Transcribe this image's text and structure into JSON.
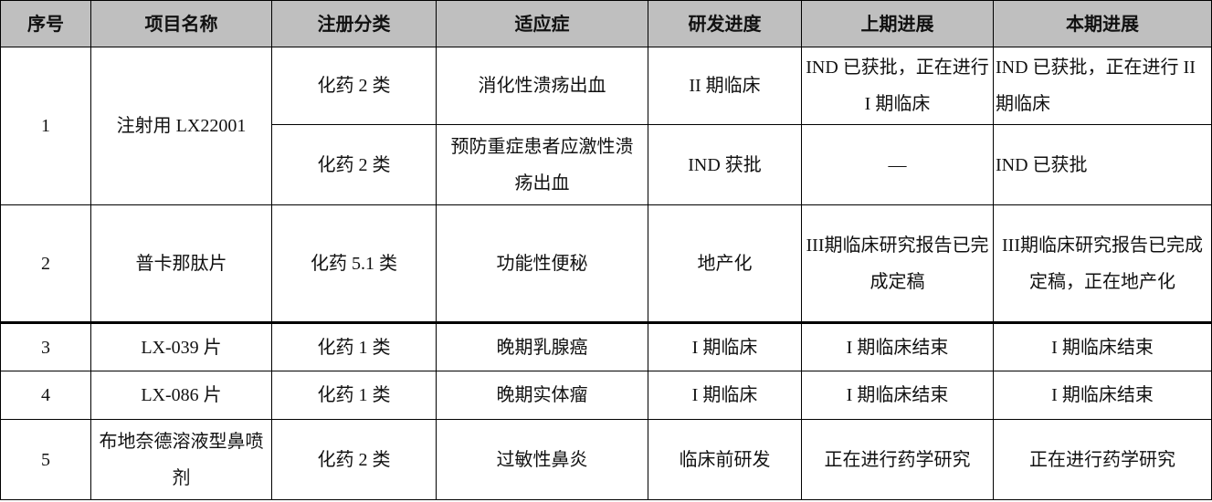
{
  "headers": [
    "序号",
    "项目名称",
    "注册分类",
    "适应症",
    "研发进度",
    "上期进展",
    "本期进展"
  ],
  "rows": [
    {
      "no": "1",
      "name": "注射用 LX22001",
      "sub": [
        {
          "reg": "化药 2 类",
          "ind": "消化性溃疡出血",
          "stage": "II 期临床",
          "prev": "IND 已获批，正在进行 I 期临床",
          "curr": "IND 已获批，正在进行 II 期临床"
        },
        {
          "reg": "化药 2 类",
          "ind": "预防重症患者应激性溃疡出血",
          "stage": "IND 获批",
          "prev": "—",
          "curr": "IND 已获批"
        }
      ]
    },
    {
      "no": "2",
      "name": "普卡那肽片",
      "reg": "化药 5.1 类",
      "ind": "功能性便秘",
      "stage": "地产化",
      "prev": "III期临床研究报告已完成定稿",
      "curr": "III期临床研究报告已完成定稿，正在地产化"
    },
    {
      "no": "3",
      "name": "LX-039 片",
      "reg": "化药 1 类",
      "ind": "晚期乳腺癌",
      "stage": "I 期临床",
      "prev": "I 期临床结束",
      "curr": "I 期临床结束"
    },
    {
      "no": "4",
      "name": "LX-086 片",
      "reg": "化药 1 类",
      "ind": "晚期实体瘤",
      "stage": "I 期临床",
      "prev": "I 期临床结束",
      "curr": "I 期临床结束"
    },
    {
      "no": "5",
      "name": "布地奈德溶液型鼻喷剂",
      "reg": "化药 2 类",
      "ind": "过敏性鼻炎",
      "stage": "临床前研发",
      "prev": "正在进行药学研究",
      "curr": "正在进行药学研究"
    }
  ]
}
